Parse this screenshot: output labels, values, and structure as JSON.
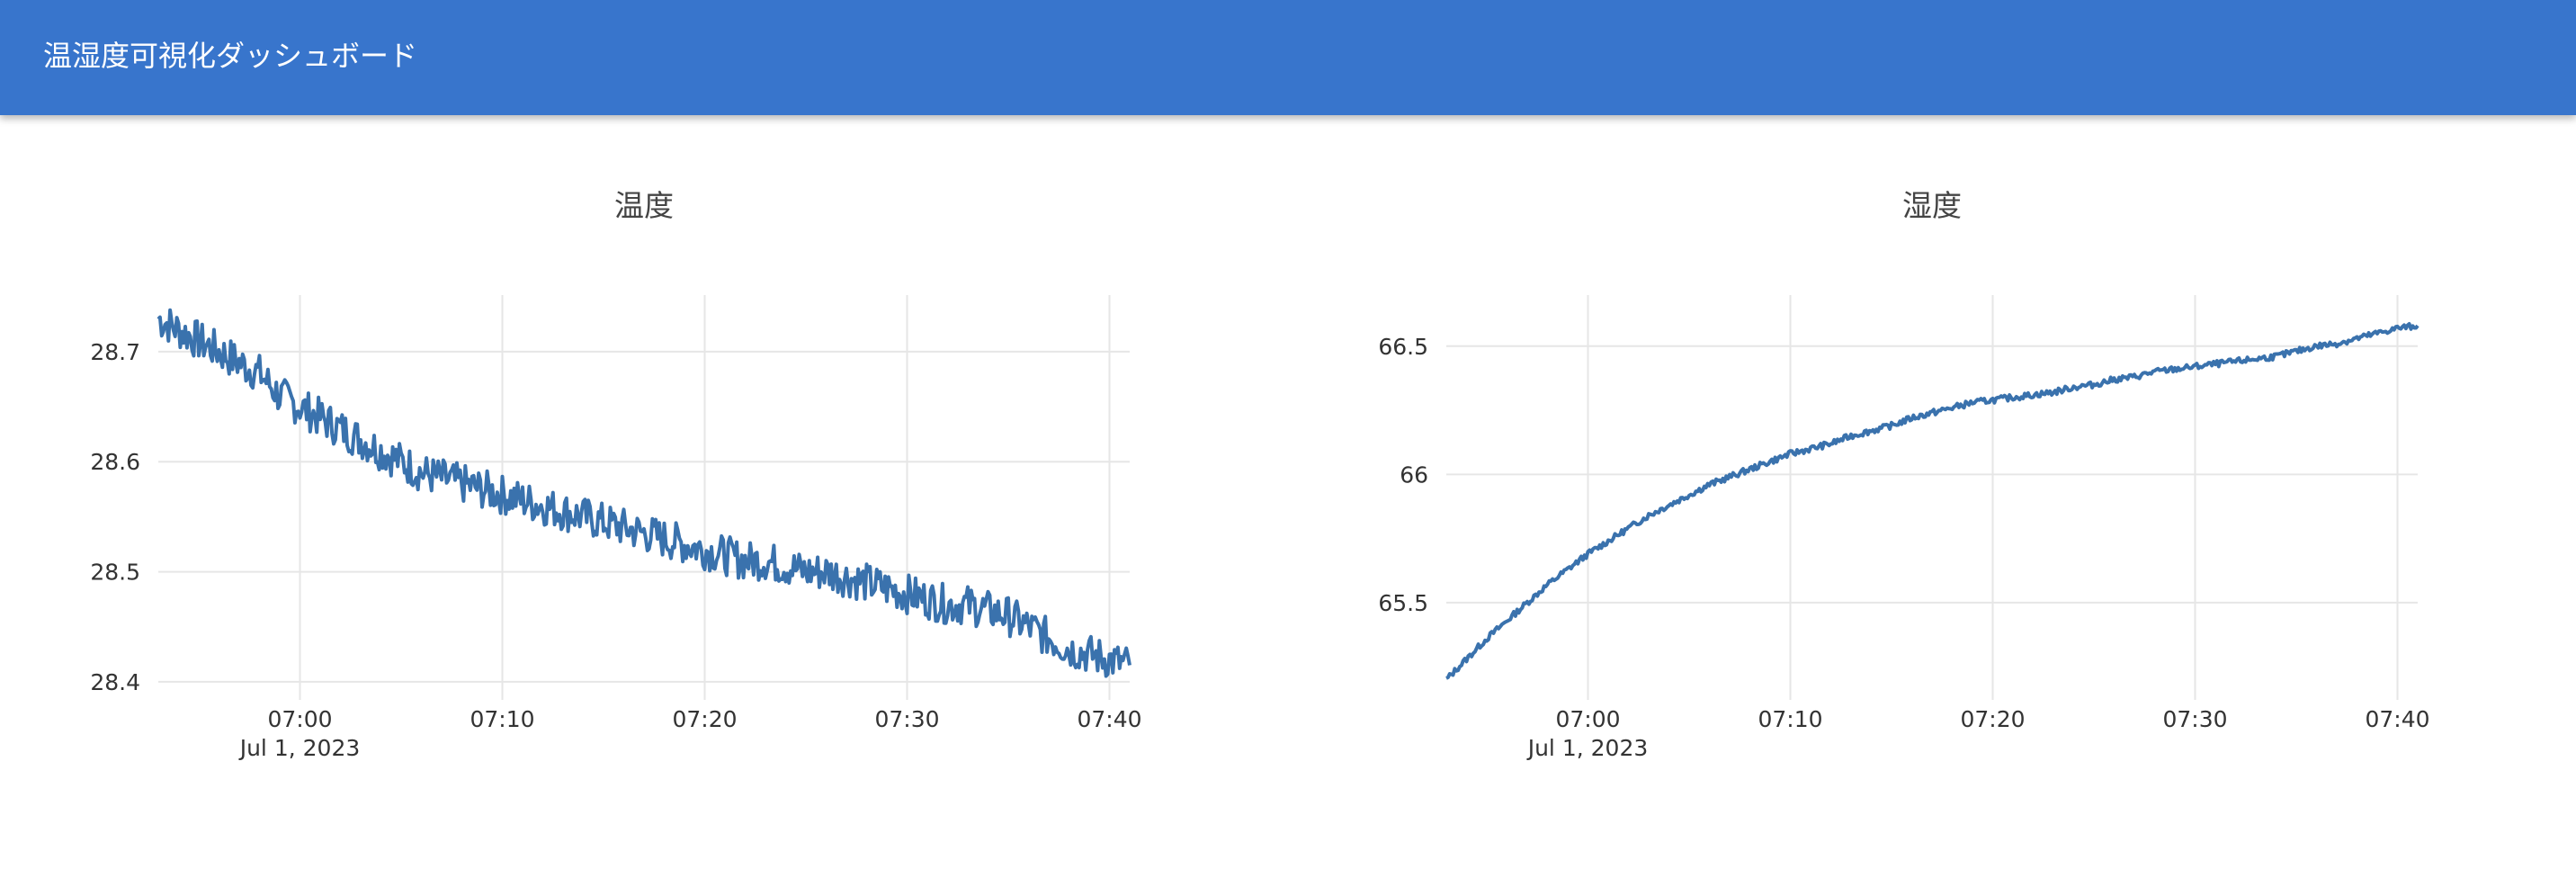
{
  "app_bar": {
    "title": "温湿度可視化ダッシュボード",
    "color": "#3875cc"
  },
  "chart_data": [
    {
      "type": "line",
      "title": "温度",
      "xlabel": "",
      "ylabel": "",
      "x_start": "2023-07-01 06:53",
      "x_end": "2023-07-01 07:41",
      "xlim": [
        "2023-07-01 06:53",
        "2023-07-01 07:41"
      ],
      "ylim": [
        28.395,
        28.74
      ],
      "x_ticks": [
        "07:00",
        "07:10",
        "07:20",
        "07:30",
        "07:40"
      ],
      "x_tick_minutes": [
        0,
        10,
        20,
        30,
        40
      ],
      "x_date_label": "Jul 1, 2023",
      "y_ticks": [
        "28.4",
        "28.5",
        "28.6",
        "28.7"
      ],
      "y_tick_values": [
        28.4,
        28.5,
        28.6,
        28.7
      ],
      "grid": true,
      "color": "#3a72ad",
      "series": [
        {
          "x": [
            "06:53",
            "06:54",
            "06:55",
            "06:56",
            "06:57",
            "06:58",
            "06:59",
            "07:00",
            "07:01",
            "07:02",
            "07:03",
            "07:04",
            "07:05",
            "07:06",
            "07:07",
            "07:08",
            "07:09",
            "07:10",
            "07:11",
            "07:12",
            "07:13",
            "07:14",
            "07:15",
            "07:16",
            "07:17",
            "07:18",
            "07:19",
            "07:20",
            "07:21",
            "07:22",
            "07:23",
            "07:24",
            "07:25",
            "07:26",
            "07:27",
            "07:28",
            "07:29",
            "07:30",
            "07:31",
            "07:32",
            "07:33",
            "07:34",
            "07:35",
            "07:36",
            "07:37",
            "07:38",
            "07:39",
            "07:40",
            "07:41"
          ],
          "y": [
            28.73,
            28.72,
            28.71,
            28.7,
            28.69,
            28.68,
            28.66,
            28.65,
            28.64,
            28.63,
            28.62,
            28.61,
            28.6,
            28.59,
            28.585,
            28.58,
            28.575,
            28.57,
            28.565,
            28.56,
            28.555,
            28.55,
            28.545,
            28.54,
            28.535,
            28.53,
            28.525,
            28.52,
            28.515,
            28.51,
            28.51,
            28.505,
            28.5,
            28.5,
            28.495,
            28.49,
            28.485,
            28.48,
            28.475,
            28.47,
            28.47,
            28.465,
            28.46,
            28.45,
            28.44,
            28.43,
            28.425,
            28.42,
            28.415
          ]
        }
      ]
    },
    {
      "type": "line",
      "title": "湿度",
      "xlabel": "",
      "ylabel": "",
      "x_start": "2023-07-01 06:53",
      "x_end": "2023-07-01 07:41",
      "xlim": [
        "2023-07-01 06:53",
        "2023-07-01 07:41"
      ],
      "ylim": [
        65.17,
        66.65
      ],
      "x_ticks": [
        "07:00",
        "07:10",
        "07:20",
        "07:30",
        "07:40"
      ],
      "x_tick_minutes": [
        0,
        10,
        20,
        30,
        40
      ],
      "x_date_label": "Jul 1, 2023",
      "y_ticks": [
        "65.5",
        "66",
        "66.5"
      ],
      "y_tick_values": [
        65.5,
        66,
        66.5
      ],
      "grid": true,
      "color": "#3a72ad",
      "series": [
        {
          "x": [
            "06:53",
            "06:54",
            "06:55",
            "06:56",
            "06:57",
            "06:58",
            "06:59",
            "07:00",
            "07:01",
            "07:02",
            "07:03",
            "07:04",
            "07:05",
            "07:06",
            "07:07",
            "07:08",
            "07:09",
            "07:10",
            "07:11",
            "07:12",
            "07:13",
            "07:14",
            "07:15",
            "07:16",
            "07:17",
            "07:18",
            "07:19",
            "07:20",
            "07:21",
            "07:22",
            "07:23",
            "07:24",
            "07:25",
            "07:26",
            "07:27",
            "07:28",
            "07:29",
            "07:30",
            "07:31",
            "07:32",
            "07:33",
            "07:34",
            "07:35",
            "07:36",
            "07:37",
            "07:38",
            "07:39",
            "07:40",
            "07:41"
          ],
          "y": [
            65.2,
            65.28,
            65.36,
            65.43,
            65.5,
            65.57,
            65.63,
            65.69,
            65.74,
            65.79,
            65.84,
            65.88,
            65.92,
            65.96,
            65.99,
            66.02,
            66.05,
            66.08,
            66.1,
            66.12,
            66.15,
            66.17,
            66.19,
            66.22,
            66.24,
            66.26,
            66.28,
            66.29,
            66.3,
            66.31,
            66.32,
            66.34,
            66.35,
            66.37,
            66.38,
            66.4,
            66.41,
            66.42,
            66.43,
            66.44,
            66.45,
            66.46,
            66.48,
            66.5,
            66.51,
            66.53,
            66.55,
            66.57,
            66.58
          ]
        }
      ]
    }
  ]
}
